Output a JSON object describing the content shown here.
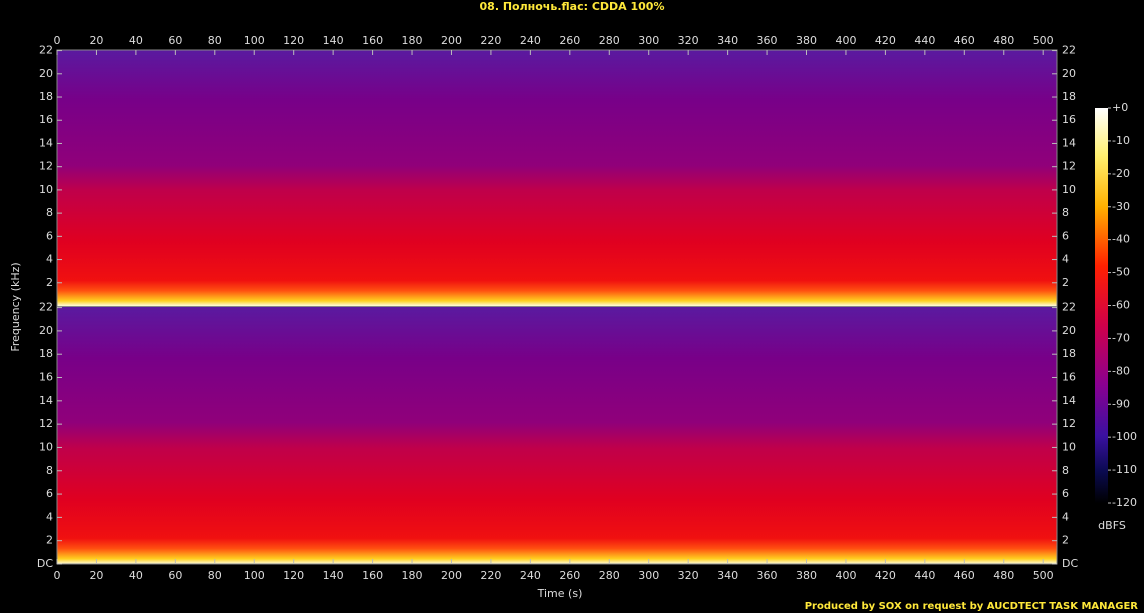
{
  "chart_data": {
    "type": "spectrogram",
    "title": "08. Полночь.flac: CDDA 100%",
    "x_label": "Time (s)",
    "y_label": "Frequency (kHz)",
    "footer": "Produced by SOX on request by AUCDTECT TASK MANAGER",
    "xlim": [
      0,
      507
    ],
    "xticks": [
      0,
      20,
      40,
      60,
      80,
      100,
      120,
      140,
      160,
      180,
      200,
      220,
      240,
      260,
      280,
      300,
      320,
      340,
      360,
      380,
      400,
      420,
      440,
      460,
      480,
      500
    ],
    "channels": [
      {
        "ylim": [
          0,
          22.05
        ],
        "yticks": [
          2,
          4,
          6,
          8,
          10,
          12,
          14,
          16,
          18,
          20,
          22
        ]
      },
      {
        "ylim": [
          0,
          22.05
        ],
        "yticks": [
          {
            "value": 0,
            "label": "DC"
          },
          2,
          4,
          6,
          8,
          10,
          12,
          14,
          16,
          18,
          20,
          22
        ]
      }
    ],
    "colorbar": {
      "label": "dBFS",
      "lim": [
        -120,
        0
      ],
      "ticks": [
        {
          "value": 0,
          "label": "+0"
        },
        -10,
        -20,
        -30,
        -40,
        -50,
        -60,
        -70,
        -80,
        -90,
        -100,
        -110,
        -120
      ]
    }
  }
}
